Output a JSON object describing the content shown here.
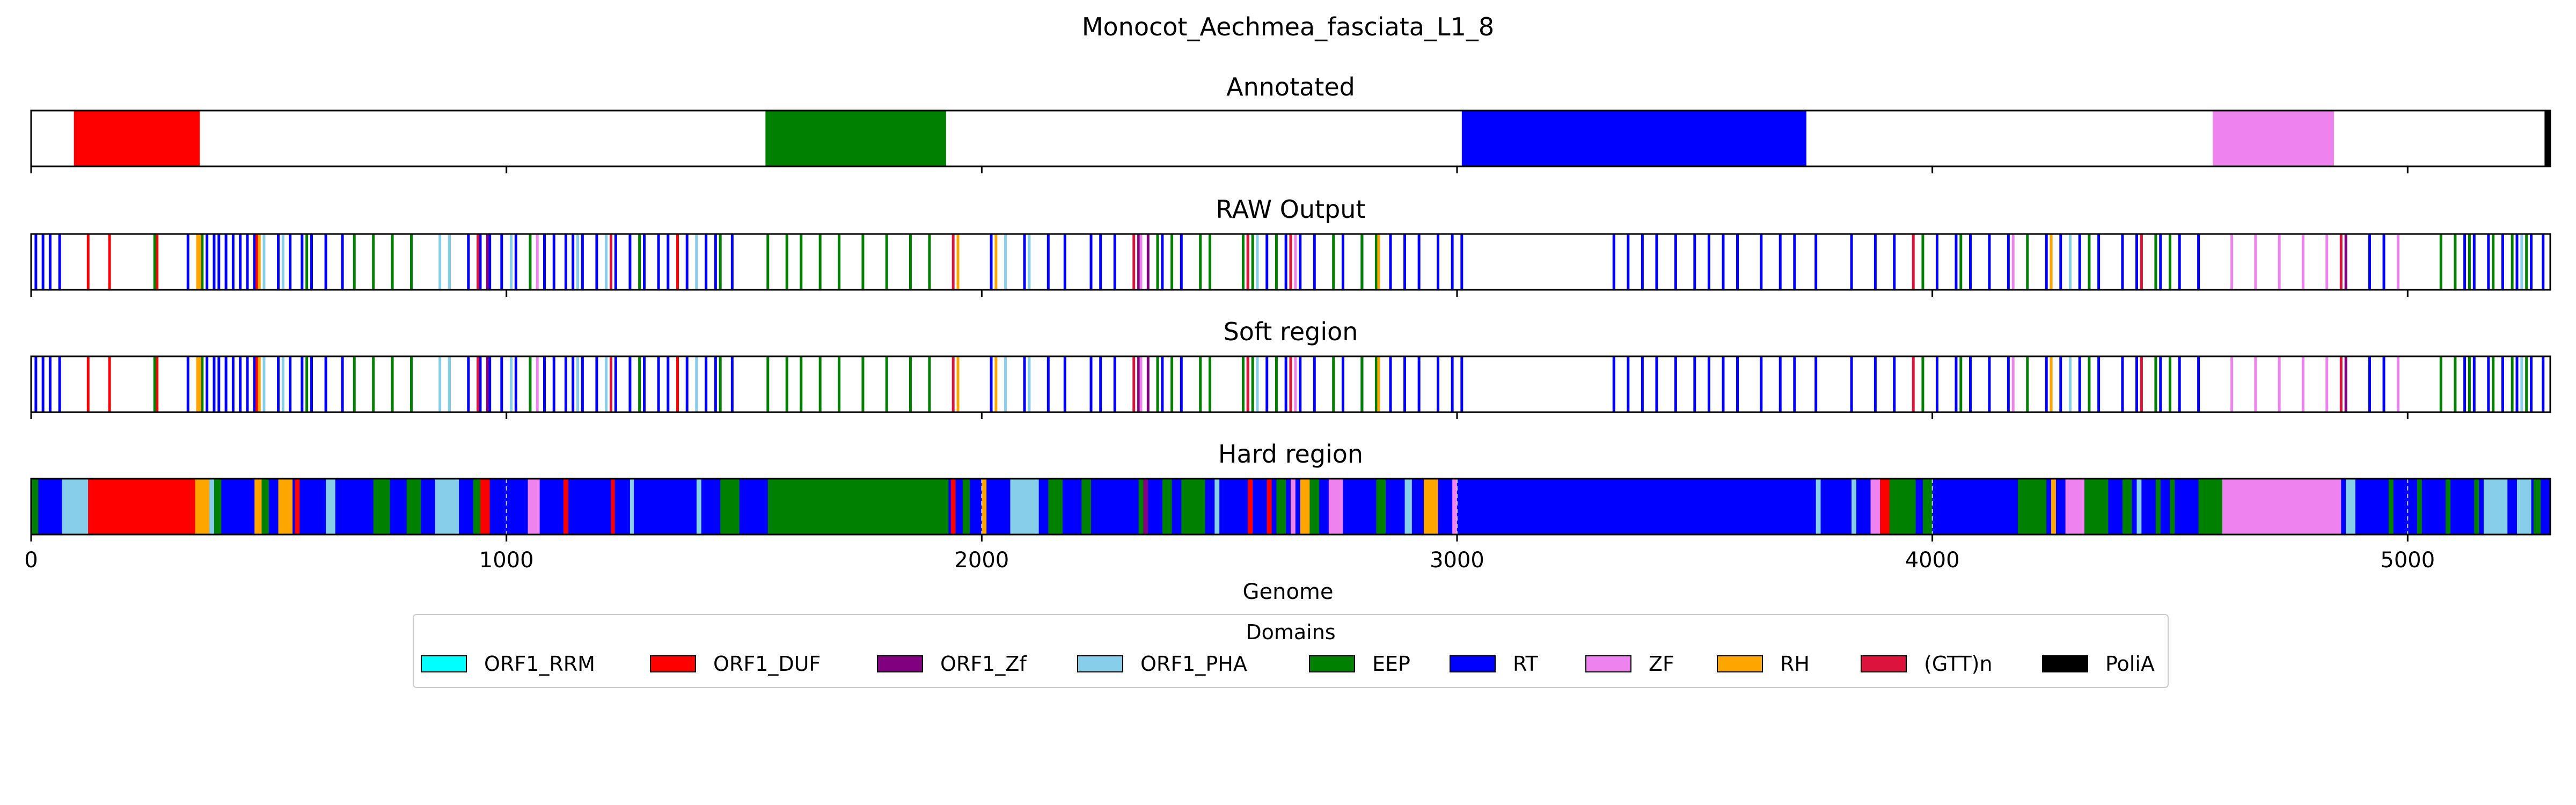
{
  "figure_title": "Monocot_Aechmea_fasciata_L1_8",
  "chart_data": {
    "type": "bar",
    "xlabel": "Genome",
    "xlim": [
      0,
      5300
    ],
    "xticks": [
      0,
      1000,
      2000,
      3000,
      4000,
      5000
    ],
    "xtick_labels": [
      "0",
      "1000",
      "2000",
      "3000",
      "4000",
      "5000"
    ],
    "grid": false,
    "legend": {
      "title": "Domains",
      "placement": "bottom-center",
      "items": [
        {
          "name": "ORF1_RRM",
          "color": "#00FFFF"
        },
        {
          "name": "ORF1_DUF",
          "color": "#FF0000"
        },
        {
          "name": "ORF1_Zf",
          "color": "#800080"
        },
        {
          "name": "ORF1_PHA",
          "color": "#87CEEB"
        },
        {
          "name": "EEP",
          "color": "#008000"
        },
        {
          "name": "RT",
          "color": "#0000FF"
        },
        {
          "name": "ZF",
          "color": "#EE82EE"
        },
        {
          "name": "RH",
          "color": "#FFA500"
        },
        {
          "name": "(GTT)n",
          "color": "#DC143C"
        },
        {
          "name": "PoliA",
          "color": "#000000"
        }
      ]
    },
    "panels": [
      {
        "title": "Annotated",
        "segments": [
          {
            "domain": "ORF1_DUF",
            "start": 90,
            "end": 355
          },
          {
            "domain": "EEP",
            "start": 1545,
            "end": 1925
          },
          {
            "domain": "RT",
            "start": 3010,
            "end": 3735
          },
          {
            "domain": "ZF",
            "start": 4590,
            "end": 4845
          },
          {
            "domain": "PoliA",
            "start": 5288,
            "end": 5300
          }
        ]
      },
      {
        "title": "RAW Output",
        "hits": [
          {
            "domain": "RT",
            "positions": [
              10,
              25,
              40,
              60,
              330,
              370,
              385,
              395,
              410,
              425,
              440,
              455,
              470,
              520,
              545,
              570,
              590,
              620,
              655,
              920,
              945,
              965,
              990,
              1020,
              1080,
              1100,
              1125,
              1140,
              1160,
              1190,
              1230,
              1260,
              1290,
              1320,
              1340,
              1380,
              1400,
              1420,
              1440,
              1475,
              2020,
              2090,
              2140,
              2175,
              2230,
              2250,
              2280,
              2380,
              2420,
              2560,
              2600,
              2640,
              2670,
              2700,
              2760,
              2800,
              2860,
              2890,
              2920,
              2960,
              2990,
              3010,
              3330,
              3360,
              3390,
              3420,
              3460,
              3500,
              3530,
              3560,
              3590,
              3640,
              3680,
              3710,
              3755,
              3830,
              3880,
              3920,
              4010,
              4050,
              4080,
              4120,
              4160,
              4240,
              4270,
              4310,
              4350,
              4400,
              4430,
              4480,
              4520,
              4560,
              4920,
              4950,
              5120,
              5140,
              5170,
              5200,
              5230,
              5260,
              5285
            ]
          },
          {
            "domain": "ORF1_DUF",
            "positions": [
              120,
              165,
              265,
              475,
              1360
            ]
          },
          {
            "domain": "EEP",
            "positions": [
              260,
              360,
              480,
              580,
              680,
              720,
              760,
              800,
              880,
              1050,
              1220,
              1280,
              1450,
              1550,
              1590,
              1620,
              1660,
              1700,
              1750,
              1800,
              1850,
              1890,
              2370,
              2400,
              2460,
              2480,
              2550,
              2570,
              2620,
              2740,
              2800,
              2830,
              3980,
              4060,
              4200,
              4250,
              4330,
              4440,
              4470,
              4500,
              5070,
              5100,
              5130,
              5180,
              5220,
              5250
            ]
          },
          {
            "domain": "ORF1_PHA",
            "positions": [
              490,
              530,
              860,
              880,
              1010,
              1150,
              1210,
              1400,
              2050,
              2100,
              2580,
              4290,
              5240
            ]
          },
          {
            "domain": "RH",
            "positions": [
              350,
              355,
              480,
              1950,
              2030,
              2560,
              2835,
              4250
            ]
          },
          {
            "domain": "(GTT)n",
            "positions": [
              940,
              1220,
              1940,
              2320,
              2560,
              2650,
              3960,
              4440,
              4860
            ]
          },
          {
            "domain": "ORF1_Zf",
            "positions": [
              960,
              2330,
              2350,
              4870
            ]
          },
          {
            "domain": "ZF",
            "positions": [
              1065,
              2335,
              2660,
              4170,
              4630,
              4680,
              4730,
              4780,
              4830,
              4980
            ]
          }
        ]
      },
      {
        "title": "Soft region",
        "hits": [
          {
            "domain": "RT",
            "positions": [
              10,
              25,
              40,
              60,
              330,
              370,
              385,
              395,
              410,
              425,
              440,
              455,
              470,
              520,
              545,
              570,
              590,
              620,
              655,
              920,
              945,
              965,
              990,
              1020,
              1080,
              1100,
              1125,
              1140,
              1160,
              1190,
              1230,
              1260,
              1290,
              1320,
              1340,
              1380,
              1400,
              1420,
              1440,
              1475,
              2020,
              2090,
              2140,
              2175,
              2230,
              2250,
              2280,
              2380,
              2420,
              2560,
              2600,
              2640,
              2670,
              2700,
              2760,
              2800,
              2860,
              2890,
              2920,
              2960,
              2990,
              3010,
              3330,
              3360,
              3390,
              3420,
              3460,
              3500,
              3530,
              3560,
              3590,
              3640,
              3680,
              3710,
              3755,
              3830,
              3880,
              3920,
              4010,
              4050,
              4080,
              4120,
              4160,
              4240,
              4270,
              4310,
              4350,
              4400,
              4430,
              4480,
              4520,
              4560,
              4920,
              4950,
              5120,
              5140,
              5170,
              5200,
              5230,
              5260,
              5285
            ]
          },
          {
            "domain": "ORF1_DUF",
            "positions": [
              120,
              165,
              265,
              475,
              1360
            ]
          },
          {
            "domain": "EEP",
            "positions": [
              260,
              360,
              480,
              580,
              680,
              720,
              760,
              800,
              880,
              1050,
              1220,
              1280,
              1450,
              1550,
              1590,
              1620,
              1660,
              1700,
              1750,
              1800,
              1850,
              1890,
              2370,
              2400,
              2460,
              2480,
              2550,
              2570,
              2620,
              2740,
              2800,
              2830,
              3980,
              4060,
              4200,
              4250,
              4330,
              4440,
              4470,
              4500,
              5070,
              5100,
              5130,
              5180,
              5220,
              5250
            ]
          },
          {
            "domain": "ORF1_PHA",
            "positions": [
              490,
              530,
              860,
              880,
              1010,
              1150,
              1210,
              1400,
              2050,
              2100,
              2580,
              4290,
              5240
            ]
          },
          {
            "domain": "RH",
            "positions": [
              350,
              355,
              480,
              1950,
              2030,
              2560,
              2835,
              4250
            ]
          },
          {
            "domain": "(GTT)n",
            "positions": [
              940,
              1220,
              1940,
              2320,
              2560,
              2650,
              3960,
              4440,
              4860
            ]
          },
          {
            "domain": "ORF1_Zf",
            "positions": [
              960,
              2330,
              2350,
              4870
            ]
          },
          {
            "domain": "ZF",
            "positions": [
              1065,
              2335,
              2660,
              4170,
              4630,
              4680,
              4730,
              4780,
              4830,
              4980
            ]
          }
        ]
      },
      {
        "title": "Hard region",
        "segments": [
          {
            "domain": "RT",
            "start": 0,
            "end": 5300
          },
          {
            "domain": "EEP",
            "start": 0,
            "end": 15
          },
          {
            "domain": "ORF1_PHA",
            "start": 65,
            "end": 120
          },
          {
            "domain": "ORF1_DUF",
            "start": 120,
            "end": 345
          },
          {
            "domain": "RH",
            "start": 345,
            "end": 375
          },
          {
            "domain": "ORF1_PHA",
            "start": 375,
            "end": 385
          },
          {
            "domain": "EEP",
            "start": 385,
            "end": 400
          },
          {
            "domain": "RH",
            "start": 470,
            "end": 485
          },
          {
            "domain": "EEP",
            "start": 485,
            "end": 500
          },
          {
            "domain": "RH",
            "start": 520,
            "end": 550
          },
          {
            "domain": "ORF1_DUF",
            "start": 555,
            "end": 565
          },
          {
            "domain": "ORF1_PHA",
            "start": 620,
            "end": 640
          },
          {
            "domain": "EEP",
            "start": 720,
            "end": 755
          },
          {
            "domain": "EEP",
            "start": 790,
            "end": 820
          },
          {
            "domain": "ORF1_PHA",
            "start": 850,
            "end": 900
          },
          {
            "domain": "EEP",
            "start": 930,
            "end": 945
          },
          {
            "domain": "ORF1_DUF",
            "start": 945,
            "end": 965
          },
          {
            "domain": "ZF",
            "start": 1045,
            "end": 1070
          },
          {
            "domain": "ORF1_DUF",
            "start": 1120,
            "end": 1130
          },
          {
            "domain": "ORF1_DUF",
            "start": 1220,
            "end": 1228
          },
          {
            "domain": "ORF1_PHA",
            "start": 1260,
            "end": 1268
          },
          {
            "domain": "ORF1_PHA",
            "start": 1400,
            "end": 1410
          },
          {
            "domain": "EEP",
            "start": 1450,
            "end": 1490
          },
          {
            "domain": "EEP",
            "start": 1550,
            "end": 1930
          },
          {
            "domain": "ORF1_DUF",
            "start": 1935,
            "end": 1945
          },
          {
            "domain": "EEP",
            "start": 1960,
            "end": 1975
          },
          {
            "domain": "RH",
            "start": 2000,
            "end": 2010
          },
          {
            "domain": "ORF1_PHA",
            "start": 2060,
            "end": 2120
          },
          {
            "domain": "EEP",
            "start": 2140,
            "end": 2170
          },
          {
            "domain": "EEP",
            "start": 2210,
            "end": 2230
          },
          {
            "domain": "EEP",
            "start": 2330,
            "end": 2340
          },
          {
            "domain": "ORF1_Zf",
            "start": 2340,
            "end": 2350
          },
          {
            "domain": "EEP",
            "start": 2380,
            "end": 2400
          },
          {
            "domain": "EEP",
            "start": 2420,
            "end": 2470
          },
          {
            "domain": "ORF1_PHA",
            "start": 2490,
            "end": 2500
          },
          {
            "domain": "ORF1_DUF",
            "start": 2560,
            "end": 2570
          },
          {
            "domain": "ORF1_DUF",
            "start": 2600,
            "end": 2610
          },
          {
            "domain": "EEP",
            "start": 2620,
            "end": 2640
          },
          {
            "domain": "ZF",
            "start": 2650,
            "end": 2660
          },
          {
            "domain": "RH",
            "start": 2670,
            "end": 2690
          },
          {
            "domain": "EEP",
            "start": 2690,
            "end": 2710
          },
          {
            "domain": "ZF",
            "start": 2730,
            "end": 2760
          },
          {
            "domain": "EEP",
            "start": 2830,
            "end": 2850
          },
          {
            "domain": "ORF1_PHA",
            "start": 2890,
            "end": 2905
          },
          {
            "domain": "RH",
            "start": 2930,
            "end": 2960
          },
          {
            "domain": "ZF",
            "start": 2990,
            "end": 3000
          },
          {
            "domain": "ORF1_PHA",
            "start": 3755,
            "end": 3765
          },
          {
            "domain": "ORF1_PHA",
            "start": 3830,
            "end": 3840
          },
          {
            "domain": "ZF",
            "start": 3870,
            "end": 3890
          },
          {
            "domain": "ORF1_DUF",
            "start": 3890,
            "end": 3910
          },
          {
            "domain": "EEP",
            "start": 3910,
            "end": 3965
          },
          {
            "domain": "EEP",
            "start": 3980,
            "end": 4000
          },
          {
            "domain": "EEP",
            "start": 4180,
            "end": 4240
          },
          {
            "domain": "RH",
            "start": 4250,
            "end": 4260
          },
          {
            "domain": "ZF",
            "start": 4280,
            "end": 4320
          },
          {
            "domain": "EEP",
            "start": 4320,
            "end": 4370
          },
          {
            "domain": "EEP",
            "start": 4400,
            "end": 4420
          },
          {
            "domain": "ORF1_PHA",
            "start": 4430,
            "end": 4440
          },
          {
            "domain": "EEP",
            "start": 4470,
            "end": 4480
          },
          {
            "domain": "EEP",
            "start": 4500,
            "end": 4510
          },
          {
            "domain": "EEP",
            "start": 4560,
            "end": 4610
          },
          {
            "domain": "ZF",
            "start": 4610,
            "end": 4860
          },
          {
            "domain": "ORF1_PHA",
            "start": 4870,
            "end": 4890
          },
          {
            "domain": "EEP",
            "start": 4960,
            "end": 4970
          },
          {
            "domain": "EEP",
            "start": 5020,
            "end": 5030
          },
          {
            "domain": "EEP",
            "start": 5080,
            "end": 5090
          },
          {
            "domain": "EEP",
            "start": 5140,
            "end": 5150
          },
          {
            "domain": "ORF1_PHA",
            "start": 5160,
            "end": 5210
          },
          {
            "domain": "ORF1_PHA",
            "start": 5230,
            "end": 5260
          },
          {
            "domain": "EEP",
            "start": 5265,
            "end": 5280
          }
        ],
        "dashed_marks": [
          1000,
          2000,
          3000,
          4000,
          5000
        ]
      }
    ]
  }
}
